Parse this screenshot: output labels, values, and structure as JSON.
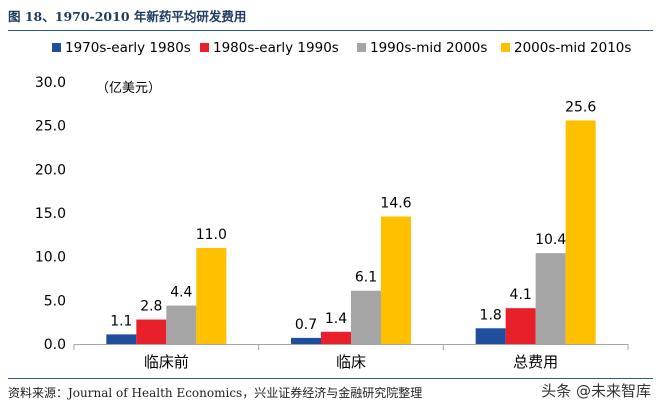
{
  "header": {
    "title": "图 18、1970-2010 年新药平均研发费用"
  },
  "footer": {
    "source": "资料来源：Journal of Health Economics，兴业证券经济与金融研究院整理",
    "watermark": "头条 @未来智库"
  },
  "chart_data": {
    "type": "bar",
    "unit": "（亿美元）",
    "categories": [
      "临床前",
      "临床",
      "总费用"
    ],
    "series": [
      {
        "name": "1970s-early 1980s",
        "color": "#1f4e9e",
        "values": [
          1.1,
          0.7,
          1.8
        ]
      },
      {
        "name": "1980s-early 1990s",
        "color": "#e8202a",
        "values": [
          2.8,
          1.4,
          4.1
        ]
      },
      {
        "name": "1990s-mid 2000s",
        "color": "#a5a5a5",
        "values": [
          4.4,
          6.1,
          10.4
        ]
      },
      {
        "name": "2000s-mid 2010s",
        "color": "#ffc000",
        "values": [
          11.0,
          14.6,
          25.6
        ]
      }
    ],
    "yticks": [
      "0.0",
      "5.0",
      "10.0",
      "15.0",
      "20.0",
      "25.0",
      "30.0"
    ],
    "ylim": [
      0,
      30
    ],
    "grid": false,
    "legend": "top"
  }
}
